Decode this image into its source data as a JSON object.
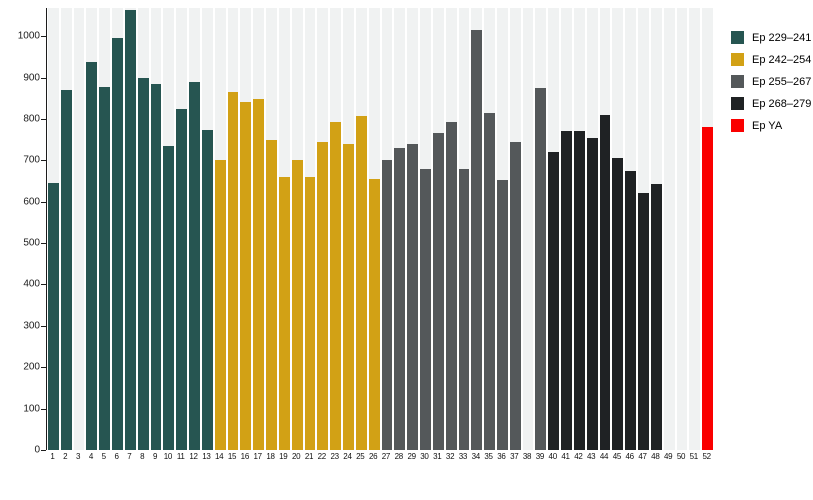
{
  "chart_data": {
    "type": "bar",
    "title": "",
    "xlabel": "",
    "ylabel": "",
    "ylim": [
      0,
      1068
    ],
    "yticks": [
      0,
      100,
      200,
      300,
      400,
      500,
      600,
      700,
      800,
      900,
      1000
    ],
    "grid": false,
    "legend_position": "top-right",
    "groups": [
      {
        "label": "Ep 229–241",
        "color": "#265551"
      },
      {
        "label": "Ep 242–254",
        "color": "#d2a115"
      },
      {
        "label": "Ep 255–267",
        "color": "#54585a"
      },
      {
        "label": "Ep 268–279",
        "color": "#1f2224"
      },
      {
        "label": "Ep YA",
        "color": "#fa0000"
      }
    ],
    "bars": [
      {
        "x": "1",
        "value": 645,
        "group": 0
      },
      {
        "x": "2",
        "value": 870,
        "group": 0
      },
      {
        "x": "3",
        "value": null,
        "group": 0
      },
      {
        "x": "4",
        "value": 938,
        "group": 0
      },
      {
        "x": "5",
        "value": 878,
        "group": 0
      },
      {
        "x": "6",
        "value": 995,
        "group": 0
      },
      {
        "x": "7",
        "value": 1063,
        "group": 0
      },
      {
        "x": "8",
        "value": 900,
        "group": 0
      },
      {
        "x": "9",
        "value": 885,
        "group": 0
      },
      {
        "x": "10",
        "value": 735,
        "group": 0
      },
      {
        "x": "11",
        "value": 823,
        "group": 0
      },
      {
        "x": "12",
        "value": 890,
        "group": 0
      },
      {
        "x": "13",
        "value": 773,
        "group": 0
      },
      {
        "x": "14",
        "value": 700,
        "group": 1
      },
      {
        "x": "15",
        "value": 865,
        "group": 1
      },
      {
        "x": "16",
        "value": 840,
        "group": 1
      },
      {
        "x": "17",
        "value": 848,
        "group": 1
      },
      {
        "x": "18",
        "value": 750,
        "group": 1
      },
      {
        "x": "19",
        "value": 660,
        "group": 1
      },
      {
        "x": "20",
        "value": 700,
        "group": 1
      },
      {
        "x": "21",
        "value": 660,
        "group": 1
      },
      {
        "x": "22",
        "value": 745,
        "group": 1
      },
      {
        "x": "23",
        "value": 793,
        "group": 1
      },
      {
        "x": "24",
        "value": 740,
        "group": 1
      },
      {
        "x": "25",
        "value": 808,
        "group": 1
      },
      {
        "x": "26",
        "value": 655,
        "group": 1
      },
      {
        "x": "27",
        "value": 700,
        "group": 2
      },
      {
        "x": "28",
        "value": 730,
        "group": 2
      },
      {
        "x": "29",
        "value": 740,
        "group": 2
      },
      {
        "x": "30",
        "value": 680,
        "group": 2
      },
      {
        "x": "31",
        "value": 765,
        "group": 2
      },
      {
        "x": "32",
        "value": 793,
        "group": 2
      },
      {
        "x": "33",
        "value": 680,
        "group": 2
      },
      {
        "x": "34",
        "value": 1015,
        "group": 2
      },
      {
        "x": "35",
        "value": 815,
        "group": 2
      },
      {
        "x": "36",
        "value": 652,
        "group": 2
      },
      {
        "x": "37",
        "value": 745,
        "group": 2
      },
      {
        "x": "38",
        "value": null,
        "group": 2
      },
      {
        "x": "39",
        "value": 875,
        "group": 2
      },
      {
        "x": "40",
        "value": 720,
        "group": 3
      },
      {
        "x": "41",
        "value": 770,
        "group": 3
      },
      {
        "x": "42",
        "value": 770,
        "group": 3
      },
      {
        "x": "43",
        "value": 755,
        "group": 3
      },
      {
        "x": "44",
        "value": 810,
        "group": 3
      },
      {
        "x": "45",
        "value": 705,
        "group": 3
      },
      {
        "x": "46",
        "value": 675,
        "group": 3
      },
      {
        "x": "47",
        "value": 622,
        "group": 3
      },
      {
        "x": "48",
        "value": 643,
        "group": 3
      },
      {
        "x": "49",
        "value": null,
        "group": 3
      },
      {
        "x": "50",
        "value": null,
        "group": 3
      },
      {
        "x": "51",
        "value": null,
        "group": 3
      },
      {
        "x": "52",
        "value": 780,
        "group": 4
      }
    ]
  }
}
